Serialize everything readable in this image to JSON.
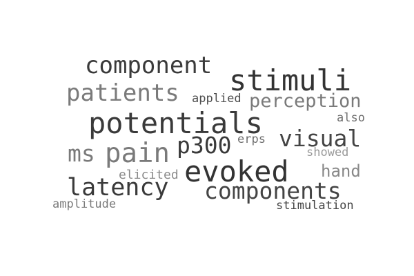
{
  "words": [
    {
      "id": "component",
      "text": "component",
      "color": "#3a3a3a"
    },
    {
      "id": "stimuli",
      "text": "stimuli",
      "color": "#333333"
    },
    {
      "id": "patients",
      "text": "patients",
      "color": "#7a7a7a"
    },
    {
      "id": "applied",
      "text": "applied",
      "color": "#4d4d4d"
    },
    {
      "id": "perception",
      "text": "perception",
      "color": "#7a7a7a"
    },
    {
      "id": "potentials",
      "text": "potentials",
      "color": "#3a3a3a"
    },
    {
      "id": "also",
      "text": "also",
      "color": "#6e6e6e"
    },
    {
      "id": "visual",
      "text": "visual",
      "color": "#444444"
    },
    {
      "id": "erps",
      "text": "erps",
      "color": "#6e6e6e"
    },
    {
      "id": "p300",
      "text": "p300",
      "color": "#3a3a3a"
    },
    {
      "id": "ms",
      "text": "ms",
      "color": "#7a7a7a"
    },
    {
      "id": "pain",
      "text": "pain",
      "color": "#7a7a7a"
    },
    {
      "id": "showed",
      "text": "showed",
      "color": "#999999"
    },
    {
      "id": "evoked",
      "text": "evoked",
      "color": "#333333"
    },
    {
      "id": "hand",
      "text": "hand",
      "color": "#888888"
    },
    {
      "id": "elicited",
      "text": "elicited",
      "color": "#8a8a8a"
    },
    {
      "id": "latency",
      "text": "latency",
      "color": "#3a3a3a"
    },
    {
      "id": "components",
      "text": "components",
      "color": "#444444"
    },
    {
      "id": "amplitude",
      "text": "amplitude",
      "color": "#7a7a7a"
    },
    {
      "id": "stimulation",
      "text": "stimulation",
      "color": "#444444"
    }
  ]
}
